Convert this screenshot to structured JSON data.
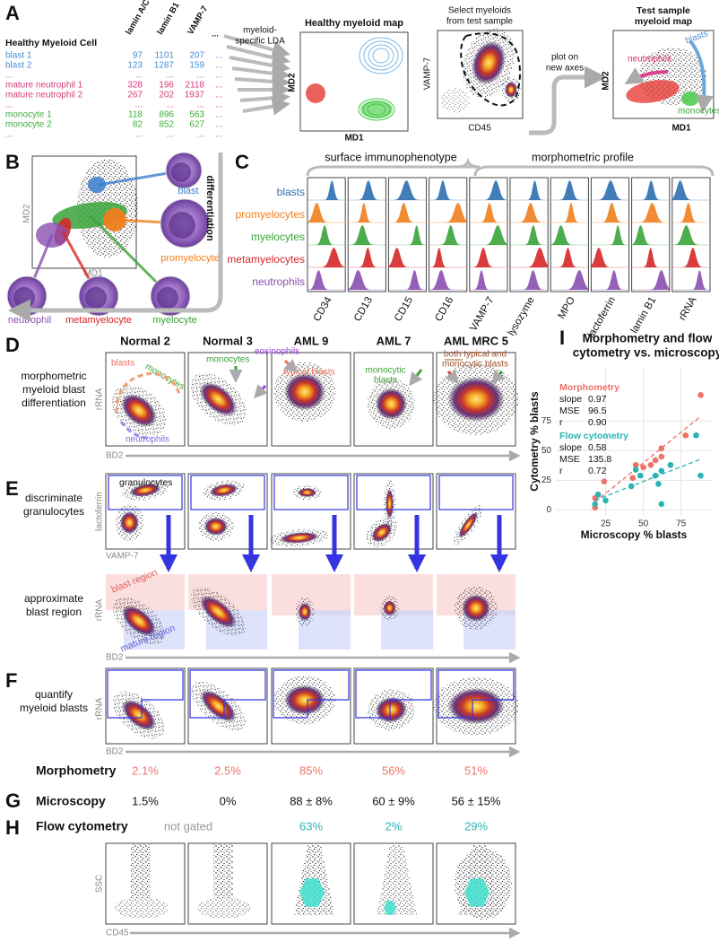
{
  "panel_a": {
    "letter": "A",
    "table": {
      "title": "Healthy Myeloid Cell",
      "columns": [
        "lamin A/C",
        "lamin B1",
        "VAMP-7",
        "..."
      ],
      "rows": [
        {
          "label": "blast 1",
          "color": "#4a8fd6",
          "values": [
            97,
            1101,
            207,
            "..."
          ]
        },
        {
          "label": "blast 2",
          "color": "#4a8fd6",
          "values": [
            123,
            1287,
            159,
            "..."
          ]
        },
        {
          "label": "...",
          "color": "#4a8fd6",
          "values": [
            "...",
            "...",
            "...",
            "..."
          ]
        },
        {
          "label": "mature neutrophil 1",
          "color": "#d63a7a",
          "values": [
            328,
            196,
            2118,
            "..."
          ]
        },
        {
          "label": "mature neutrophil 2",
          "color": "#d63a7a",
          "values": [
            267,
            202,
            1937,
            "..."
          ]
        },
        {
          "label": "...",
          "color": "#d63a7a",
          "values": [
            "...",
            "...",
            "...",
            "..."
          ]
        },
        {
          "label": "monocyte 1",
          "color": "#3cae3c",
          "values": [
            118,
            896,
            563,
            "..."
          ]
        },
        {
          "label": "monocyte 2",
          "color": "#3cae3c",
          "values": [
            82,
            852,
            627,
            "..."
          ]
        },
        {
          "label": "...",
          "color": "#3cae3c",
          "values": [
            "...",
            "...",
            "...",
            "..."
          ]
        }
      ]
    },
    "lda_label": [
      "myeloid-",
      "specific LDA"
    ],
    "healthy_map": {
      "title": "Healthy myeloid map",
      "x_label": "MD1",
      "y_label": "MD2"
    },
    "select": {
      "title": [
        "Select myeloids",
        "from test sample"
      ],
      "x_label": "CD45",
      "y_label": "VAMP-7"
    },
    "plot_label": [
      "plot on",
      "new axes"
    ],
    "test_map": {
      "title": [
        "Test sample",
        "myeloid map"
      ],
      "x_label": "MD1",
      "y_label": "MD2",
      "labels": [
        "neutrophils",
        "blasts",
        "monocytes"
      ]
    }
  },
  "panel_b": {
    "letter": "B",
    "x_label": "MD1",
    "y_label": "MD2",
    "cells": [
      {
        "name": "blast",
        "color": "#3a7fd0"
      },
      {
        "name": "promyelocyte",
        "color": "#f07f1e"
      },
      {
        "name": "neutrophil",
        "color": "#8a4fb0"
      },
      {
        "name": "metamyelocyte",
        "color": "#d62728"
      },
      {
        "name": "myelocyte",
        "color": "#3aa33a"
      }
    ],
    "arrow_label": "differentiation"
  },
  "panel_c": {
    "letter": "C",
    "groups": [
      "surface immunophenotype",
      "morphometric profile"
    ],
    "rows": [
      {
        "name": "blasts",
        "color": "#2f6fb0"
      },
      {
        "name": "promyelocytes",
        "color": "#f07f1e"
      },
      {
        "name": "myelocytes",
        "color": "#3aa33a"
      },
      {
        "name": "metamyelocytes",
        "color": "#d62728"
      },
      {
        "name": "neutrophils",
        "color": "#8a4fb0"
      }
    ],
    "columns": [
      "CD34",
      "CD13",
      "CD15",
      "CD16",
      "VAMP-7",
      "lysozyme",
      "MPO",
      "lactoferrin",
      "lamin B1",
      "rRNA"
    ]
  },
  "panel_d": {
    "letter": "D",
    "samples": [
      "Normal 2",
      "Normal 3",
      "AML 9",
      "AML 7",
      "AML MRC 5"
    ],
    "label": [
      "morphometric",
      "myeloid blast",
      "differentiation"
    ],
    "x_label": "BD2",
    "y_label": "rRNA",
    "annotations": [
      {
        "text": [
          "blasts"
        ],
        "color": "#e8735a"
      },
      {
        "text": [
          "monocytes"
        ],
        "color": "#3aa33a"
      },
      {
        "text": [
          "neutrophils"
        ],
        "color": "#7b68d8"
      },
      {
        "text": [
          "monocytes"
        ],
        "color": "#3aa33a"
      },
      {
        "text": [
          "eosinophils"
        ],
        "color": "#9b3fd8"
      },
      {
        "text": [
          "typical blasts"
        ],
        "color": "#e8735a"
      },
      {
        "text": [
          "monocytic",
          "blasts"
        ],
        "color": "#3aa33a"
      },
      {
        "text": [
          "both typical and",
          "monocytic blasts"
        ],
        "color": "#a0522d"
      }
    ]
  },
  "panel_e": {
    "letter": "E",
    "label": [
      "discriminate",
      "granulocytes"
    ],
    "gate_label": "granulocytes",
    "x_label": "VAMP-7",
    "y_label": "lactoferrin",
    "region_label": [
      "approximate",
      "blast region"
    ],
    "regions": [
      "blast region",
      "mature region"
    ],
    "region_x_label": "BD2",
    "region_y_label": "rRNA"
  },
  "panel_f": {
    "letter": "F",
    "label": [
      "quantify",
      "myeloid blasts"
    ],
    "x_label": "BD2",
    "y_label": "rRNA",
    "result_label": "Morphometry",
    "results": [
      "2.1%",
      "2.5%",
      "85%",
      "56%",
      "51%"
    ]
  },
  "panel_g": {
    "letter": "G",
    "label": "Microscopy",
    "results": [
      "1.5%",
      "0%",
      "88 ± 8%",
      "60 ± 9%",
      "56 ± 15%"
    ]
  },
  "panel_h": {
    "letter": "H",
    "label": "Flow cytometry",
    "not_gated": "not gated",
    "results": [
      "63%",
      "2%",
      "29%"
    ],
    "x_label": "CD45",
    "y_label": "SSC"
  },
  "panel_i": {
    "letter": "I",
    "chart_data": {
      "type": "scatter",
      "title": [
        "Morphometry and flow",
        "cytometry vs. microscopy"
      ],
      "x_label": "Microscopy % blasts",
      "y_label": "Cytometry % blasts",
      "xlim": [
        -8,
        96
      ],
      "ylim": [
        -5,
        120
      ],
      "xticks": [
        25,
        50,
        75
      ],
      "yticks": [
        0,
        25,
        50,
        75
      ],
      "grid": true,
      "series": [
        {
          "name": "Morphometry",
          "color": "#f07167",
          "x": [
            18,
            18,
            20,
            24,
            43,
            45,
            50,
            55,
            58,
            62,
            62,
            78,
            88
          ],
          "values": [
            2,
            10,
            13,
            24,
            27,
            38,
            36,
            38,
            42,
            45,
            52,
            63,
            97
          ],
          "stats": [
            {
              "label": "slope",
              "value": "0.97"
            },
            {
              "label": "MSE",
              "value": "96.5"
            },
            {
              "label": "r",
              "value": "0.90"
            }
          ]
        },
        {
          "name": "Flow cytometry",
          "color": "#2ab3b3",
          "x": [
            18,
            20,
            25,
            42,
            45,
            48,
            58,
            60,
            62,
            62,
            68,
            85,
            88
          ],
          "values": [
            5,
            13,
            8,
            20,
            34,
            29,
            29,
            22,
            5,
            33,
            38,
            63,
            29
          ],
          "stats": [
            {
              "label": "slope",
              "value": "0.58"
            },
            {
              "label": "MSE",
              "value": "135.8"
            },
            {
              "label": "r",
              "value": "0.72"
            }
          ]
        }
      ]
    }
  }
}
